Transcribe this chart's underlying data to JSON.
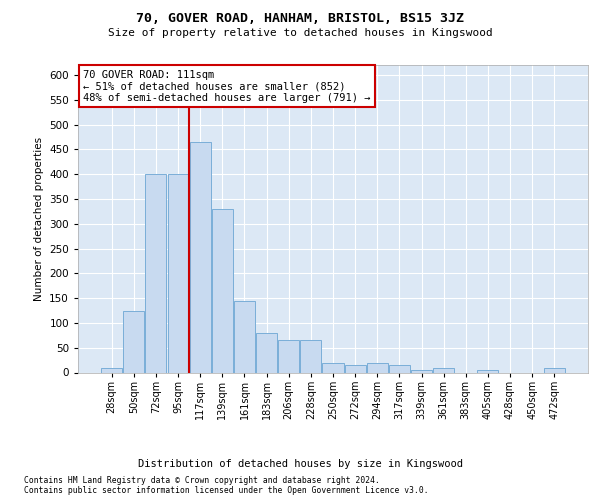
{
  "title": "70, GOVER ROAD, HANHAM, BRISTOL, BS15 3JZ",
  "subtitle": "Size of property relative to detached houses in Kingswood",
  "xlabel": "Distribution of detached houses by size in Kingswood",
  "ylabel": "Number of detached properties",
  "categories": [
    "28sqm",
    "50sqm",
    "72sqm",
    "95sqm",
    "117sqm",
    "139sqm",
    "161sqm",
    "183sqm",
    "206sqm",
    "228sqm",
    "250sqm",
    "272sqm",
    "294sqm",
    "317sqm",
    "339sqm",
    "361sqm",
    "383sqm",
    "405sqm",
    "428sqm",
    "450sqm",
    "472sqm"
  ],
  "values": [
    10,
    125,
    400,
    400,
    465,
    330,
    145,
    80,
    65,
    65,
    20,
    15,
    20,
    15,
    5,
    10,
    0,
    5,
    0,
    0,
    10
  ],
  "bar_fill_color": "#c8daf0",
  "bar_edge_color": "#7aaed8",
  "vline_color": "#cc0000",
  "vline_x_index": 3.5,
  "annotation_line1": "70 GOVER ROAD: 111sqm",
  "annotation_line2": "← 51% of detached houses are smaller (852)",
  "annotation_line3": "48% of semi-detached houses are larger (791) →",
  "annotation_box_facecolor": "white",
  "annotation_box_edgecolor": "#cc0000",
  "ylim_min": 0,
  "ylim_max": 620,
  "yticks": [
    0,
    50,
    100,
    150,
    200,
    250,
    300,
    350,
    400,
    450,
    500,
    550,
    600
  ],
  "axes_bg_color": "#dce8f5",
  "grid_color": "white",
  "footer_line1": "Contains HM Land Registry data © Crown copyright and database right 2024.",
  "footer_line2": "Contains public sector information licensed under the Open Government Licence v3.0."
}
